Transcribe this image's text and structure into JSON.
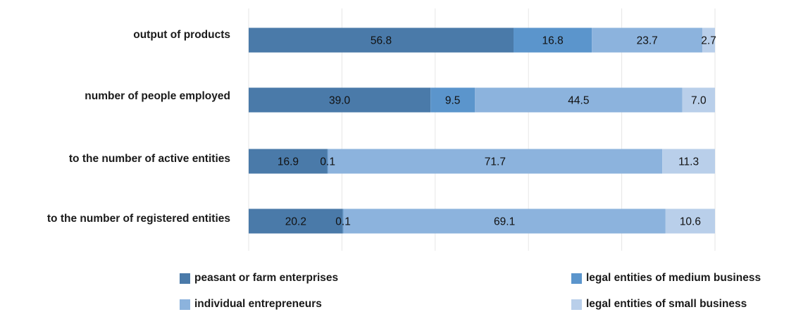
{
  "chart_data": {
    "type": "bar",
    "orientation": "horizontal",
    "stacked": true,
    "title": "",
    "xlabel": "",
    "ylabel": "",
    "xlim": [
      0,
      100
    ],
    "grid": "vertical",
    "legend_position": "bottom",
    "categories": [
      "output of products",
      "number of people employed",
      "to the number of active entities",
      "to the number of registered entities"
    ],
    "series": [
      {
        "name": "peasant or farm enterprises",
        "color": "#4a7aa9",
        "values": [
          56.8,
          39.0,
          16.9,
          20.2
        ],
        "labels": [
          "56.8",
          "39.0",
          "16.9",
          "20.2"
        ]
      },
      {
        "name": "legal entities of medium business",
        "color": "#5b95cc",
        "values": [
          16.8,
          9.5,
          0.1,
          0.1
        ],
        "labels": [
          "16.8",
          "9.5",
          "0.1",
          "0.1"
        ]
      },
      {
        "name": "individual entrepreneurs",
        "color": "#8cb3dd",
        "values": [
          23.7,
          44.5,
          71.7,
          69.1
        ],
        "labels": [
          "23.7",
          "44.5",
          "71.7",
          "69.1"
        ]
      },
      {
        "name": "legal entities of small business",
        "color": "#b9cfea",
        "values": [
          2.7,
          7.0,
          11.3,
          10.6
        ],
        "labels": [
          "2.7",
          "7.0",
          "11.3",
          "10.6"
        ]
      }
    ]
  }
}
